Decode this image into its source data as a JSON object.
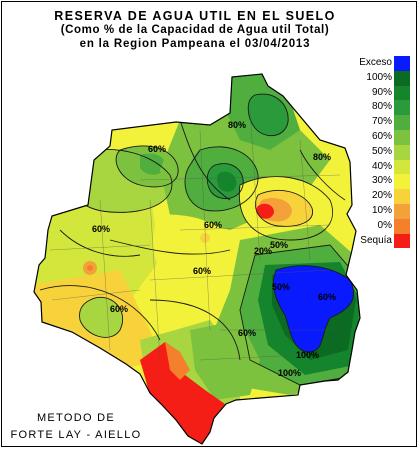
{
  "title": {
    "line1": "RESERVA DE AGUA UTIL EN EL SUELO",
    "line2": "(Como % de la Capacidad de Agua util Total)",
    "line3": "en la Region Pampeana el 03/04/2013"
  },
  "legend": [
    {
      "label": "Exceso",
      "color": "#0a1aff"
    },
    {
      "label": "100%",
      "color": "#0b6b22"
    },
    {
      "label": "90%",
      "color": "#14852c"
    },
    {
      "label": "80%",
      "color": "#2a9a3a"
    },
    {
      "label": "70%",
      "color": "#4fae3e"
    },
    {
      "label": "60%",
      "color": "#7cc23f"
    },
    {
      "label": "50%",
      "color": "#a8d640"
    },
    {
      "label": "40%",
      "color": "#d3e63c"
    },
    {
      "label": "30%",
      "color": "#f3f23a"
    },
    {
      "label": "20%",
      "color": "#f7d23a"
    },
    {
      "label": "10%",
      "color": "#f5a13a"
    },
    {
      "label": "0%",
      "color": "#f4802e"
    },
    {
      "label": "Sequía",
      "color": "#f41e16"
    }
  ],
  "contour_labels": [
    "80%",
    "60%",
    "80%",
    "60%",
    "60%",
    "60%",
    "20%",
    "50%",
    "60%",
    "50%",
    "60%",
    "100%",
    "100%",
    "60%"
  ],
  "method": {
    "line1": "METODO DE",
    "line2": "FORTE LAY - AIELLO"
  }
}
